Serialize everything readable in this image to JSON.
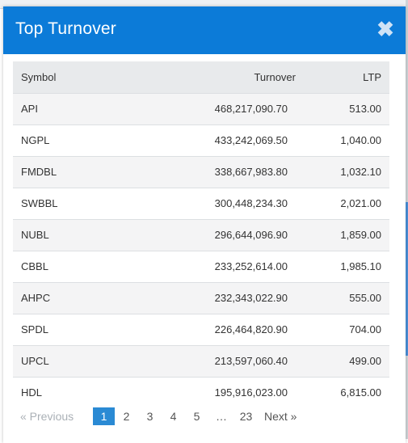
{
  "modal": {
    "title": "Top Turnover",
    "close_icon": "close-icon",
    "close_glyph": "✖"
  },
  "table": {
    "headers": {
      "symbol": "Symbol",
      "turnover": "Turnover",
      "ltp": "LTP"
    },
    "rows": [
      {
        "symbol": "API",
        "turnover": "468,217,090.70",
        "ltp": "513.00"
      },
      {
        "symbol": "NGPL",
        "turnover": "433,242,069.50",
        "ltp": "1,040.00"
      },
      {
        "symbol": "FMDBL",
        "turnover": "338,667,983.80",
        "ltp": "1,032.10"
      },
      {
        "symbol": "SWBBL",
        "turnover": "300,448,234.30",
        "ltp": "2,021.00"
      },
      {
        "symbol": "NUBL",
        "turnover": "296,644,096.90",
        "ltp": "1,859.00"
      },
      {
        "symbol": "CBBL",
        "turnover": "233,252,614.00",
        "ltp": "1,985.10"
      },
      {
        "symbol": "AHPC",
        "turnover": "232,343,022.90",
        "ltp": "555.00"
      },
      {
        "symbol": "SPDL",
        "turnover": "226,464,820.90",
        "ltp": "704.00"
      },
      {
        "symbol": "UPCL",
        "turnover": "213,597,060.40",
        "ltp": "499.00"
      },
      {
        "symbol": "HDL",
        "turnover": "195,916,023.00",
        "ltp": "6,815.00"
      }
    ]
  },
  "pagination": {
    "previous": "« Previous",
    "pages": [
      "1",
      "2",
      "3",
      "4",
      "5"
    ],
    "current": "1",
    "ellipsis": "…",
    "last": "23",
    "next": "Next »"
  }
}
